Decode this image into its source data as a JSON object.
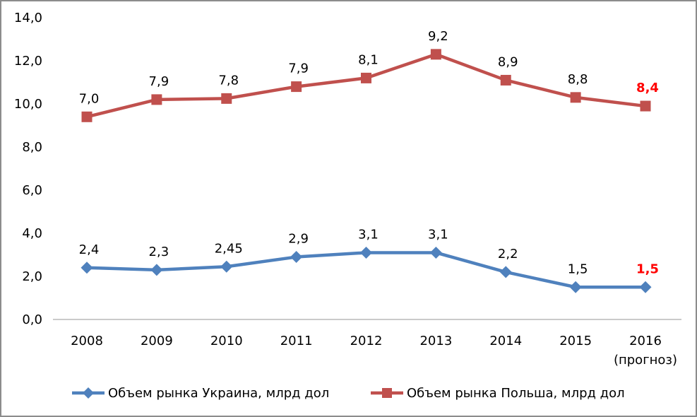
{
  "frame": {
    "background": "#FFFFFF",
    "border_color": "#8C8C8C"
  },
  "styles": {
    "text_color": "#000000",
    "axis_line_color": "#969696",
    "highlight_color": "#FF0000"
  },
  "chart_data": {
    "type": "line",
    "title": "",
    "xlabel": "",
    "ylabel": "",
    "x": [
      "2008",
      "2009",
      "2010",
      "2011",
      "2012",
      "2013",
      "2014",
      "2015",
      "2016"
    ],
    "x_last_note": "(прогноз)",
    "series": [
      {
        "name": "Объем рынка Украина, млрд дол",
        "color": "#4F81BD",
        "marker": "diamond",
        "values": [
          2.4,
          2.3,
          2.45,
          2.9,
          3.1,
          3.1,
          2.2,
          1.5,
          1.5
        ],
        "labels": [
          "2,4",
          "2,3",
          "2,45",
          "2,9",
          "3,1",
          "3,1",
          "2,2",
          "1,5",
          "1,5"
        ]
      },
      {
        "name": "Объем рынка Польша, млрд дол",
        "color": "#C0504D",
        "marker": "square",
        "values": [
          7.0,
          7.9,
          7.8,
          7.9,
          8.1,
          9.2,
          8.9,
          8.8,
          8.4
        ],
        "labels": [
          "7,0",
          "7,9",
          "7,8",
          "7,9",
          "8,1",
          "9,2",
          "8,9",
          "8,8",
          "8,4"
        ]
      }
    ],
    "stacked": true,
    "ylim": [
      0,
      14
    ],
    "ytick_step": 2,
    "ytick_labels": [
      "0,0",
      "2,0",
      "4,0",
      "6,0",
      "8,0",
      "10,0",
      "12,0",
      "14,0"
    ],
    "last_point_label_color": "#FF0000",
    "grid": false,
    "legend_position": "bottom"
  }
}
